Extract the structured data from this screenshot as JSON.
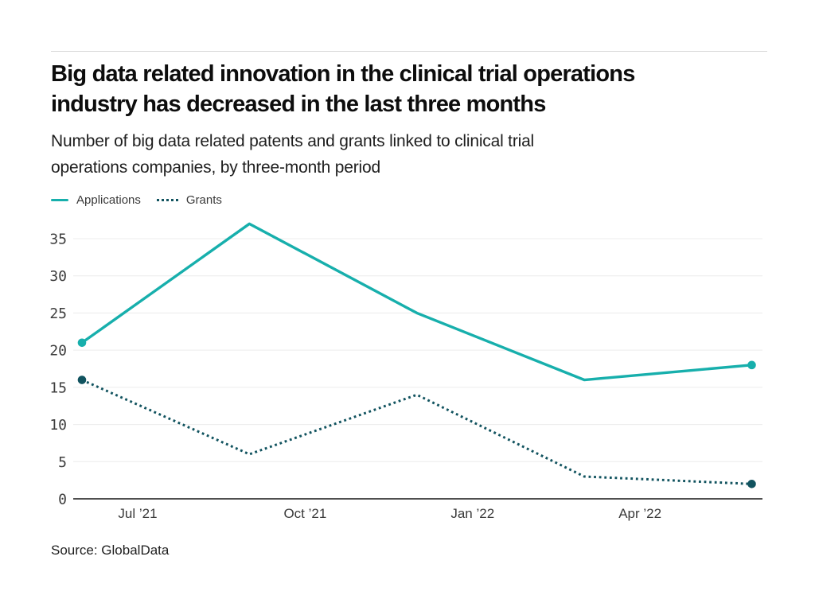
{
  "header": {
    "title_lines": [
      "Big data related innovation in the clinical trial operations",
      "industry has decreased in the last three months"
    ],
    "subtitle_lines": [
      "Number of big data related patents and grants linked to clinical trial",
      "operations companies, by three-month period"
    ]
  },
  "footer": {
    "source": "Source: GlobalData"
  },
  "chart_data": {
    "type": "line",
    "title": "Big data related innovation in the clinical trial operations industry has decreased in the last three months",
    "subtitle": "Number of big data related patents and grants linked to clinical trial operations companies, by three-month period",
    "x_ticks": [
      "Jul ’21",
      "Oct ’21",
      "Jan ’22",
      "Apr ’22"
    ],
    "points_per_series": 5,
    "series": [
      {
        "name": "Applications",
        "style": "solid",
        "color": "#17afac",
        "values": [
          21,
          37,
          25,
          16,
          18
        ]
      },
      {
        "name": "Grants",
        "style": "dotted",
        "color": "#11535f",
        "values": [
          16,
          6,
          14,
          3,
          2
        ]
      }
    ],
    "ylim": [
      0,
      35
    ],
    "ytick_step": 5,
    "grid": true,
    "legend_position": "top-left",
    "endpoint_markers": true,
    "colors": {
      "applications": "#17afac",
      "grants": "#11535f",
      "gridline": "#ececec",
      "axis_line": "#4f4f4f",
      "tick_text": "#3d3d3d"
    },
    "source": "Source: GlobalData"
  }
}
